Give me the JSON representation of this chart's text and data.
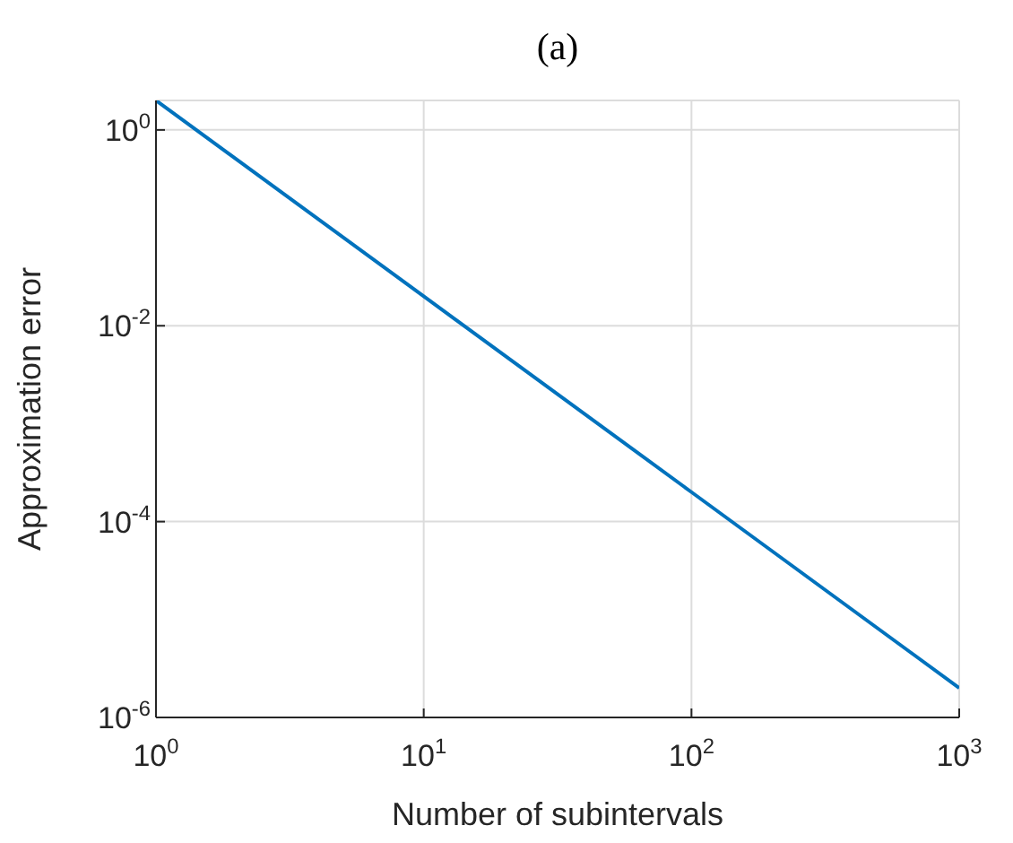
{
  "chart_data": {
    "type": "line",
    "title": "(a)",
    "xlabel": "Number of subintervals",
    "ylabel": "Approximation error",
    "x": [
      1,
      10,
      100,
      1000
    ],
    "series": [
      {
        "color": "#0072bd",
        "values": [
          2,
          0.02,
          0.0002,
          2e-06
        ]
      }
    ],
    "xlim": [
      1,
      1000
    ],
    "ylim": [
      1e-06,
      2
    ],
    "xticks": [
      {
        "value": 1,
        "label": "10$^{0}$"
      },
      {
        "value": 10,
        "label": "10$^{1}$"
      },
      {
        "value": 100,
        "label": "10$^{2}$"
      },
      {
        "value": 1000,
        "label": "10$^{3}$"
      }
    ],
    "yticks": [
      {
        "value": 1e-06,
        "label": "10$^{-6}$"
      },
      {
        "value": 0.0001,
        "label": "10$^{-4}$"
      },
      {
        "value": 0.01,
        "label": "10$^{-2}$"
      },
      {
        "value": 1,
        "label": "10$^{0}$"
      }
    ],
    "log": "xy",
    "grid": true,
    "marker": "none",
    "line_style": "solid"
  }
}
